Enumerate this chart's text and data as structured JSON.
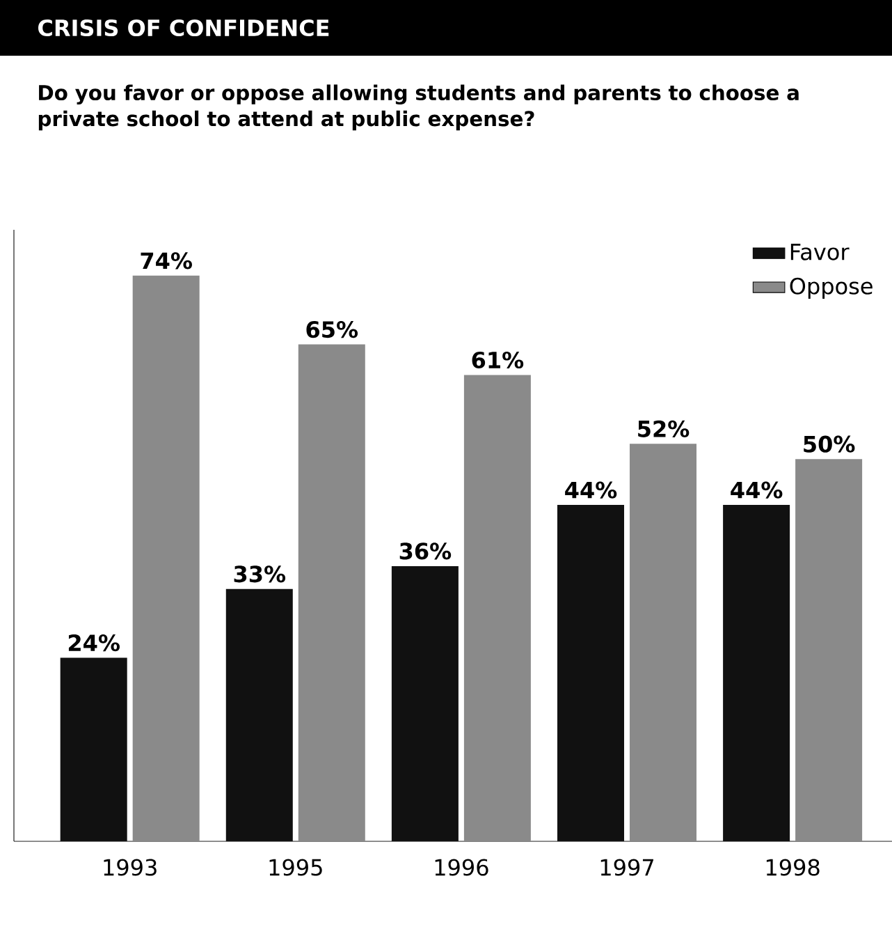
{
  "chart_data": {
    "type": "bar",
    "title": "CRISIS OF CONFIDENCE",
    "subtitle": "Do you favor or oppose allowing students and parents to choose a private school to attend at public expense?",
    "categories": [
      "1993",
      "1995",
      "1996",
      "1997",
      "1998"
    ],
    "series": [
      {
        "name": "Favor",
        "color": "#111111",
        "values": [
          24,
          33,
          36,
          44,
          44
        ],
        "value_labels": [
          "24%",
          "33%",
          "36%",
          "44%",
          "44%"
        ]
      },
      {
        "name": "Oppose",
        "color": "#8a8a8a",
        "values": [
          74,
          65,
          61,
          52,
          50
        ],
        "value_labels": [
          "74%",
          "65%",
          "61%",
          "52%",
          "50%"
        ]
      }
    ],
    "ylim": [
      0,
      80
    ],
    "tick_labels": "x",
    "legend": "top right",
    "grid": false
  }
}
